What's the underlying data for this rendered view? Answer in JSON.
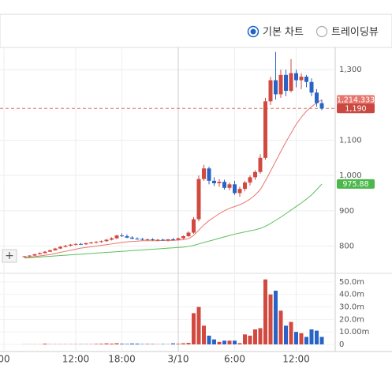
{
  "toolbar": {
    "options": [
      {
        "label": "기본 차트",
        "selected": true
      },
      {
        "label": "트레이딩뷰",
        "selected": false
      }
    ]
  },
  "chart_data": {
    "type": "candlestick",
    "categories": [
      "00",
      null,
      null,
      null,
      null,
      null,
      null,
      null,
      null,
      null,
      null,
      null,
      null,
      null,
      "12:00",
      null,
      null,
      null,
      null,
      null,
      null,
      null,
      null,
      "18:00",
      null,
      null,
      null,
      null,
      null,
      null,
      null,
      null,
      null,
      null,
      "3/10",
      null,
      null,
      null,
      null,
      null,
      null,
      null,
      null,
      null,
      null,
      "6:00",
      null,
      null,
      null,
      null,
      null,
      null,
      null,
      null,
      null,
      null,
      null,
      "12:00",
      null,
      null,
      null,
      null,
      null
    ],
    "open": [
      null,
      null,
      null,
      null,
      770,
      771,
      773,
      777,
      780,
      784,
      788,
      793,
      798,
      801,
      804,
      806,
      805,
      808,
      810,
      812,
      814,
      818,
      822,
      830,
      828,
      824,
      821,
      820,
      818,
      819,
      817,
      818,
      816,
      819,
      818,
      822,
      828,
      838,
      876,
      990,
      1020,
      985,
      978,
      982,
      965,
      975,
      950,
      962,
      980,
      995,
      1010,
      1050,
      1210,
      1270,
      1230,
      1285,
      1240,
      1290,
      1270,
      1280,
      1265,
      1235,
      1205
    ],
    "high": [
      null,
      null,
      null,
      null,
      772,
      774,
      778,
      782,
      786,
      790,
      795,
      800,
      803,
      806,
      808,
      809,
      810,
      812,
      814,
      816,
      820,
      825,
      832,
      836,
      833,
      828,
      825,
      823,
      821,
      822,
      820,
      821,
      820,
      823,
      824,
      830,
      842,
      882,
      1000,
      1030,
      1025,
      995,
      990,
      988,
      980,
      985,
      968,
      985,
      1000,
      1015,
      1060,
      1220,
      1280,
      1350,
      1300,
      1300,
      1330,
      1300,
      1290,
      1285,
      1275,
      1245,
      1215
    ],
    "low": [
      null,
      null,
      null,
      null,
      768,
      769,
      772,
      776,
      779,
      783,
      787,
      792,
      796,
      799,
      801,
      803,
      803,
      806,
      807,
      809,
      812,
      816,
      820,
      826,
      822,
      819,
      818,
      816,
      815,
      815,
      814,
      815,
      813,
      816,
      816,
      820,
      826,
      835,
      870,
      985,
      975,
      970,
      968,
      960,
      958,
      945,
      940,
      955,
      972,
      988,
      1005,
      1045,
      1200,
      1215,
      1220,
      1225,
      1235,
      1250,
      1245,
      1250,
      1225,
      1195,
      1185
    ],
    "close": [
      null,
      null,
      null,
      null,
      771,
      773,
      777,
      780,
      784,
      788,
      793,
      798,
      801,
      804,
      806,
      805,
      808,
      810,
      812,
      814,
      818,
      822,
      830,
      828,
      824,
      821,
      820,
      818,
      819,
      817,
      818,
      816,
      819,
      818,
      822,
      828,
      838,
      876,
      990,
      1020,
      985,
      978,
      982,
      965,
      975,
      950,
      962,
      980,
      995,
      1010,
      1050,
      1210,
      1270,
      1230,
      1285,
      1240,
      1290,
      1270,
      1280,
      1265,
      1235,
      1205,
      1190
    ],
    "up_color": "#d2493f",
    "down_color": "#2a63c6",
    "ylim": [
      725,
      1363
    ],
    "yticks": [
      {
        "value": 1300,
        "label": "1,300"
      },
      {
        "value": 1100,
        "label": "1,100"
      },
      {
        "value": 1000,
        "label": "1,000"
      },
      900,
      800
    ],
    "moving_averages": [
      {
        "color": "#e5776f",
        "tag": {
          "value": 1214.333,
          "label": "1,214.333"
        },
        "values": [
          null,
          null,
          null,
          null,
          768,
          769,
          770,
          772,
          774,
          776,
          779,
          782,
          785,
          788,
          791,
          794,
          796,
          798,
          800,
          802,
          804,
          806,
          808,
          810,
          812,
          813,
          814,
          815,
          815,
          815,
          815,
          816,
          816,
          816,
          817,
          818,
          821,
          830,
          845,
          860,
          872,
          882,
          892,
          900,
          907,
          912,
          917,
          924,
          933,
          945,
          960,
          985,
          1012,
          1040,
          1068,
          1095,
          1120,
          1145,
          1165,
          1182,
          1195,
          1206,
          1214.333
        ]
      },
      {
        "color": "#5cbf5c",
        "tag": {
          "value": 975.88,
          "label": "975.88"
        },
        "values": [
          null,
          null,
          null,
          null,
          766,
          767,
          768,
          769,
          770,
          771,
          772,
          773,
          774,
          775,
          776,
          777,
          778,
          779,
          780,
          781,
          782,
          783,
          784,
          785,
          786,
          787,
          788,
          789,
          790,
          791,
          792,
          793,
          794,
          795,
          796,
          797,
          799,
          802,
          806,
          810,
          814,
          818,
          822,
          826,
          830,
          834,
          837,
          840,
          843,
          846,
          850,
          856,
          864,
          873,
          882,
          892,
          902,
          912,
          922,
          933,
          945,
          960,
          975.88
        ]
      }
    ],
    "current_price": {
      "value": 1190,
      "label": "1,190"
    },
    "volume": {
      "ylim": [
        0,
        55
      ],
      "yticks": [
        {
          "value": 50,
          "label": "50.0m"
        },
        {
          "value": 40,
          "label": "40.0m"
        },
        {
          "value": 30,
          "label": "30.0m"
        },
        {
          "value": 20,
          "label": "20.0m"
        },
        {
          "value": 10,
          "label": "10.00m"
        },
        0
      ],
      "values": [
        null,
        null,
        null,
        null,
        0.1,
        0.1,
        0.1,
        0.1,
        0.6,
        0.2,
        0.2,
        0.2,
        0.2,
        0.2,
        0.2,
        0.2,
        0.2,
        0.2,
        0.4,
        0.5,
        0.8,
        0.6,
        0.9,
        0.5,
        0.4,
        0.7,
        0.6,
        0.3,
        0.4,
        0.3,
        0.2,
        0.3,
        0.2,
        0.8,
        0.5,
        0.9,
        1.2,
        25,
        30,
        15,
        7,
        4,
        2,
        3,
        3,
        3,
        1,
        8,
        7,
        12,
        13,
        52,
        40,
        43,
        27,
        15,
        18,
        10,
        9,
        6,
        12,
        11,
        6
      ]
    }
  }
}
